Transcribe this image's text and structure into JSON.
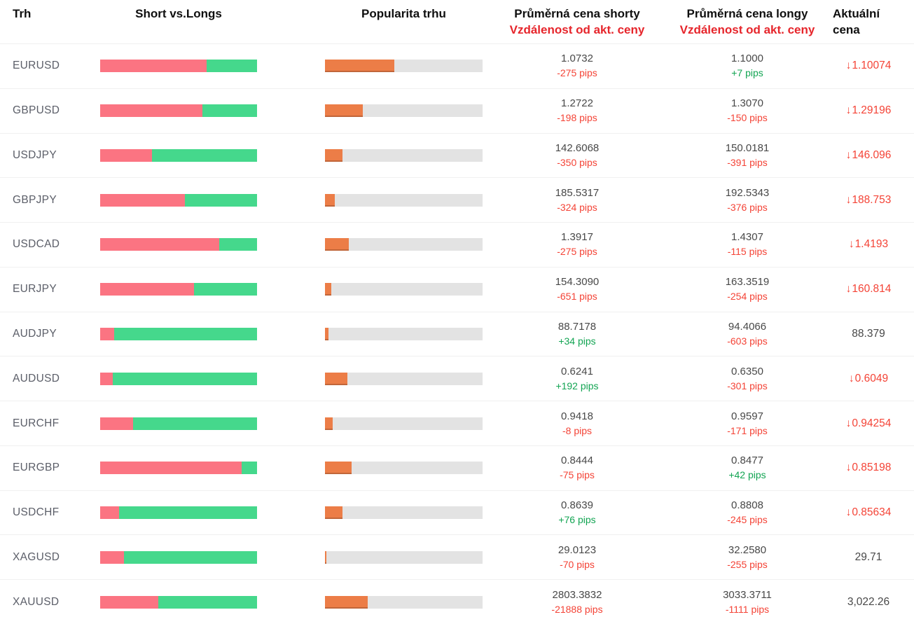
{
  "header": {
    "market": "Trh",
    "short_vs_longs": "Short vs.Longs",
    "popularity": "Popularita trhu",
    "avg_short_line1": "Průměrná cena shorty",
    "avg_short_line2": "Vzdálenost od akt. ceny",
    "avg_long_line1": "Průměrná cena longy",
    "avg_long_line2": "Vzdálenost od akt. ceny",
    "current_line1": "Aktuální",
    "current_line2": "cena"
  },
  "icons": {
    "down_arrow": "↓"
  },
  "colors": {
    "short_bar": "#fb7482",
    "long_bar": "#45d88c",
    "popularity_bar": "#ec7d47",
    "track": "#e3e3e3",
    "pips_neg": "#f44336",
    "pips_pos": "#12a452",
    "price_text": "#484848",
    "market_text": "#5b5e68",
    "header_red": "#e6252b"
  },
  "rows": [
    {
      "market": "EURUSD",
      "short_pct": 68,
      "popularity_pct": 44,
      "short_price": "1.0732",
      "short_pips": "-275 pips",
      "short_pips_dir": "neg",
      "long_price": "1.1000",
      "long_pips": "+7 pips",
      "long_pips_dir": "pos",
      "current_price": "1.10074",
      "current_dir": "down"
    },
    {
      "market": "GBPUSD",
      "short_pct": 65,
      "popularity_pct": 24,
      "short_price": "1.2722",
      "short_pips": "-198 pips",
      "short_pips_dir": "neg",
      "long_price": "1.3070",
      "long_pips": "-150 pips",
      "long_pips_dir": "neg",
      "current_price": "1.29196",
      "current_dir": "down"
    },
    {
      "market": "USDJPY",
      "short_pct": 33,
      "popularity_pct": 11,
      "short_price": "142.6068",
      "short_pips": "-350 pips",
      "short_pips_dir": "neg",
      "long_price": "150.0181",
      "long_pips": "-391 pips",
      "long_pips_dir": "neg",
      "current_price": "146.096",
      "current_dir": "down"
    },
    {
      "market": "GBPJPY",
      "short_pct": 54,
      "popularity_pct": 6,
      "short_price": "185.5317",
      "short_pips": "-324 pips",
      "short_pips_dir": "neg",
      "long_price": "192.5343",
      "long_pips": "-376 pips",
      "long_pips_dir": "neg",
      "current_price": "188.753",
      "current_dir": "down"
    },
    {
      "market": "USDCAD",
      "short_pct": 76,
      "popularity_pct": 15,
      "short_price": "1.3917",
      "short_pips": "-275 pips",
      "short_pips_dir": "neg",
      "long_price": "1.4307",
      "long_pips": "-115 pips",
      "long_pips_dir": "neg",
      "current_price": "1.4193",
      "current_dir": "down"
    },
    {
      "market": "EURJPY",
      "short_pct": 60,
      "popularity_pct": 4,
      "short_price": "154.3090",
      "short_pips": "-651 pips",
      "short_pips_dir": "neg",
      "long_price": "163.3519",
      "long_pips": "-254 pips",
      "long_pips_dir": "neg",
      "current_price": "160.814",
      "current_dir": "down"
    },
    {
      "market": "AUDJPY",
      "short_pct": 9,
      "popularity_pct": 2,
      "short_price": "88.7178",
      "short_pips": "+34 pips",
      "short_pips_dir": "pos",
      "long_price": "94.4066",
      "long_pips": "-603 pips",
      "long_pips_dir": "neg",
      "current_price": "88.379",
      "current_dir": "none"
    },
    {
      "market": "AUDUSD",
      "short_pct": 8,
      "popularity_pct": 14,
      "short_price": "0.6241",
      "short_pips": "+192 pips",
      "short_pips_dir": "pos",
      "long_price": "0.6350",
      "long_pips": "-301 pips",
      "long_pips_dir": "neg",
      "current_price": "0.6049",
      "current_dir": "down"
    },
    {
      "market": "EURCHF",
      "short_pct": 21,
      "popularity_pct": 5,
      "short_price": "0.9418",
      "short_pips": "-8 pips",
      "short_pips_dir": "neg",
      "long_price": "0.9597",
      "long_pips": "-171 pips",
      "long_pips_dir": "neg",
      "current_price": "0.94254",
      "current_dir": "down"
    },
    {
      "market": "EURGBP",
      "short_pct": 90,
      "popularity_pct": 17,
      "short_price": "0.8444",
      "short_pips": "-75 pips",
      "short_pips_dir": "neg",
      "long_price": "0.8477",
      "long_pips": "+42 pips",
      "long_pips_dir": "pos",
      "current_price": "0.85198",
      "current_dir": "down"
    },
    {
      "market": "USDCHF",
      "short_pct": 12,
      "popularity_pct": 11,
      "short_price": "0.8639",
      "short_pips": "+76 pips",
      "short_pips_dir": "pos",
      "long_price": "0.8808",
      "long_pips": "-245 pips",
      "long_pips_dir": "neg",
      "current_price": "0.85634",
      "current_dir": "down"
    },
    {
      "market": "XAGUSD",
      "short_pct": 15,
      "popularity_pct": 1,
      "short_price": "29.0123",
      "short_pips": "-70 pips",
      "short_pips_dir": "neg",
      "long_price": "32.2580",
      "long_pips": "-255 pips",
      "long_pips_dir": "neg",
      "current_price": "29.71",
      "current_dir": "none"
    },
    {
      "market": "XAUUSD",
      "short_pct": 37,
      "popularity_pct": 27,
      "short_price": "2803.3832",
      "short_pips": "-21888 pips",
      "short_pips_dir": "neg",
      "long_price": "3033.3711",
      "long_pips": "-1111 pips",
      "long_pips_dir": "neg",
      "current_price": "3,022.26",
      "current_dir": "none"
    }
  ]
}
